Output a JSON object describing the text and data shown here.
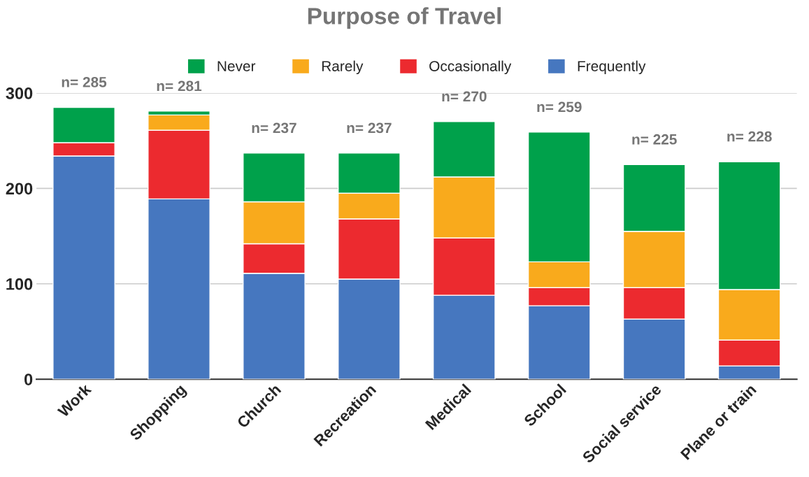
{
  "chart_data": {
    "type": "bar",
    "title": "Purpose of Travel",
    "stacked": true,
    "categories": [
      "Work",
      "Shopping",
      "Church",
      "Recreation",
      "Medical",
      "School",
      "Social service",
      "Plane or train"
    ],
    "series": [
      {
        "name": "Frequently",
        "color": "#4677bf",
        "values": [
          234,
          189,
          111,
          105,
          88,
          77,
          63,
          14
        ]
      },
      {
        "name": "Occasionally",
        "color": "#ec2a2f",
        "values": [
          14,
          72,
          31,
          63,
          60,
          19,
          33,
          27
        ]
      },
      {
        "name": "Rarely",
        "color": "#f9aa1c",
        "values": [
          0,
          16,
          44,
          27,
          64,
          27,
          59,
          53
        ]
      },
      {
        "name": "Never",
        "color": "#00a14b",
        "values": [
          37,
          4,
          51,
          42,
          58,
          136,
          70,
          134
        ]
      }
    ],
    "totals": [
      "n= 285",
      "n= 281",
      "n= 237",
      "n= 237",
      "n= 270",
      "n= 259",
      "n= 225",
      "n= 228"
    ],
    "ylim": [
      0,
      300
    ],
    "yticks": [
      0,
      100,
      200,
      300
    ],
    "grid": "y",
    "legend": "top"
  }
}
